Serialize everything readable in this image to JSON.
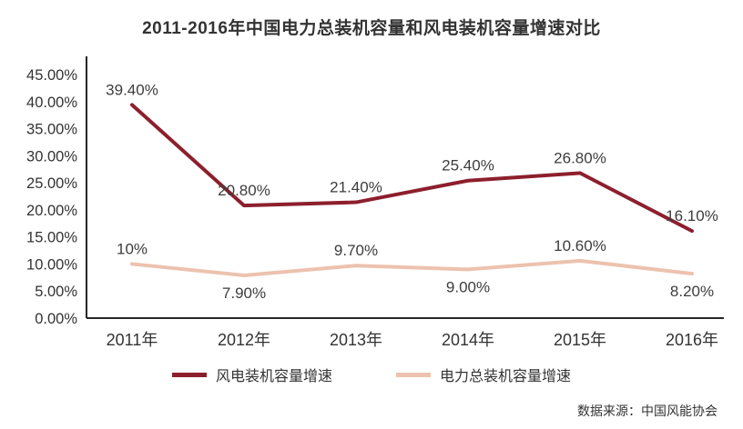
{
  "title": "2011-2016年中国电力总装机容量和风电装机容量增速对比",
  "source": "数据来源：中国风能协会",
  "chart_data": {
    "type": "line",
    "categories": [
      "2011年",
      "2012年",
      "2013年",
      "2014年",
      "2015年",
      "2016年"
    ],
    "series": [
      {
        "name": "风电装机容量增速",
        "color": "#8d1f2d",
        "values": [
          39.4,
          20.8,
          21.4,
          25.4,
          26.8,
          16.1
        ],
        "labels": [
          "39.40%",
          "20.80%",
          "21.40%",
          "25.40%",
          "26.80%",
          "16.10%"
        ],
        "label_side": [
          "above",
          "above",
          "above",
          "above",
          "above",
          "above"
        ]
      },
      {
        "name": "电力总装机容量增速",
        "color": "#ecc2ae",
        "values": [
          10.0,
          7.9,
          9.7,
          9.0,
          10.6,
          8.2
        ],
        "labels": [
          "10%",
          "7.90%",
          "9.70%",
          "9.00%",
          "10.60%",
          "8.20%"
        ],
        "label_side": [
          "above",
          "below",
          "above",
          "below",
          "above",
          "below"
        ]
      }
    ],
    "ylim": [
      0,
      45
    ],
    "ytick_step": 5,
    "ytick_labels": [
      "0.00%",
      "5.00%",
      "10.00%",
      "15.00%",
      "20.00%",
      "25.00%",
      "30.00%",
      "35.00%",
      "40.00%",
      "45.00%"
    ],
    "grid": false,
    "legend_position": "bottom",
    "axis_color": "#262626"
  }
}
